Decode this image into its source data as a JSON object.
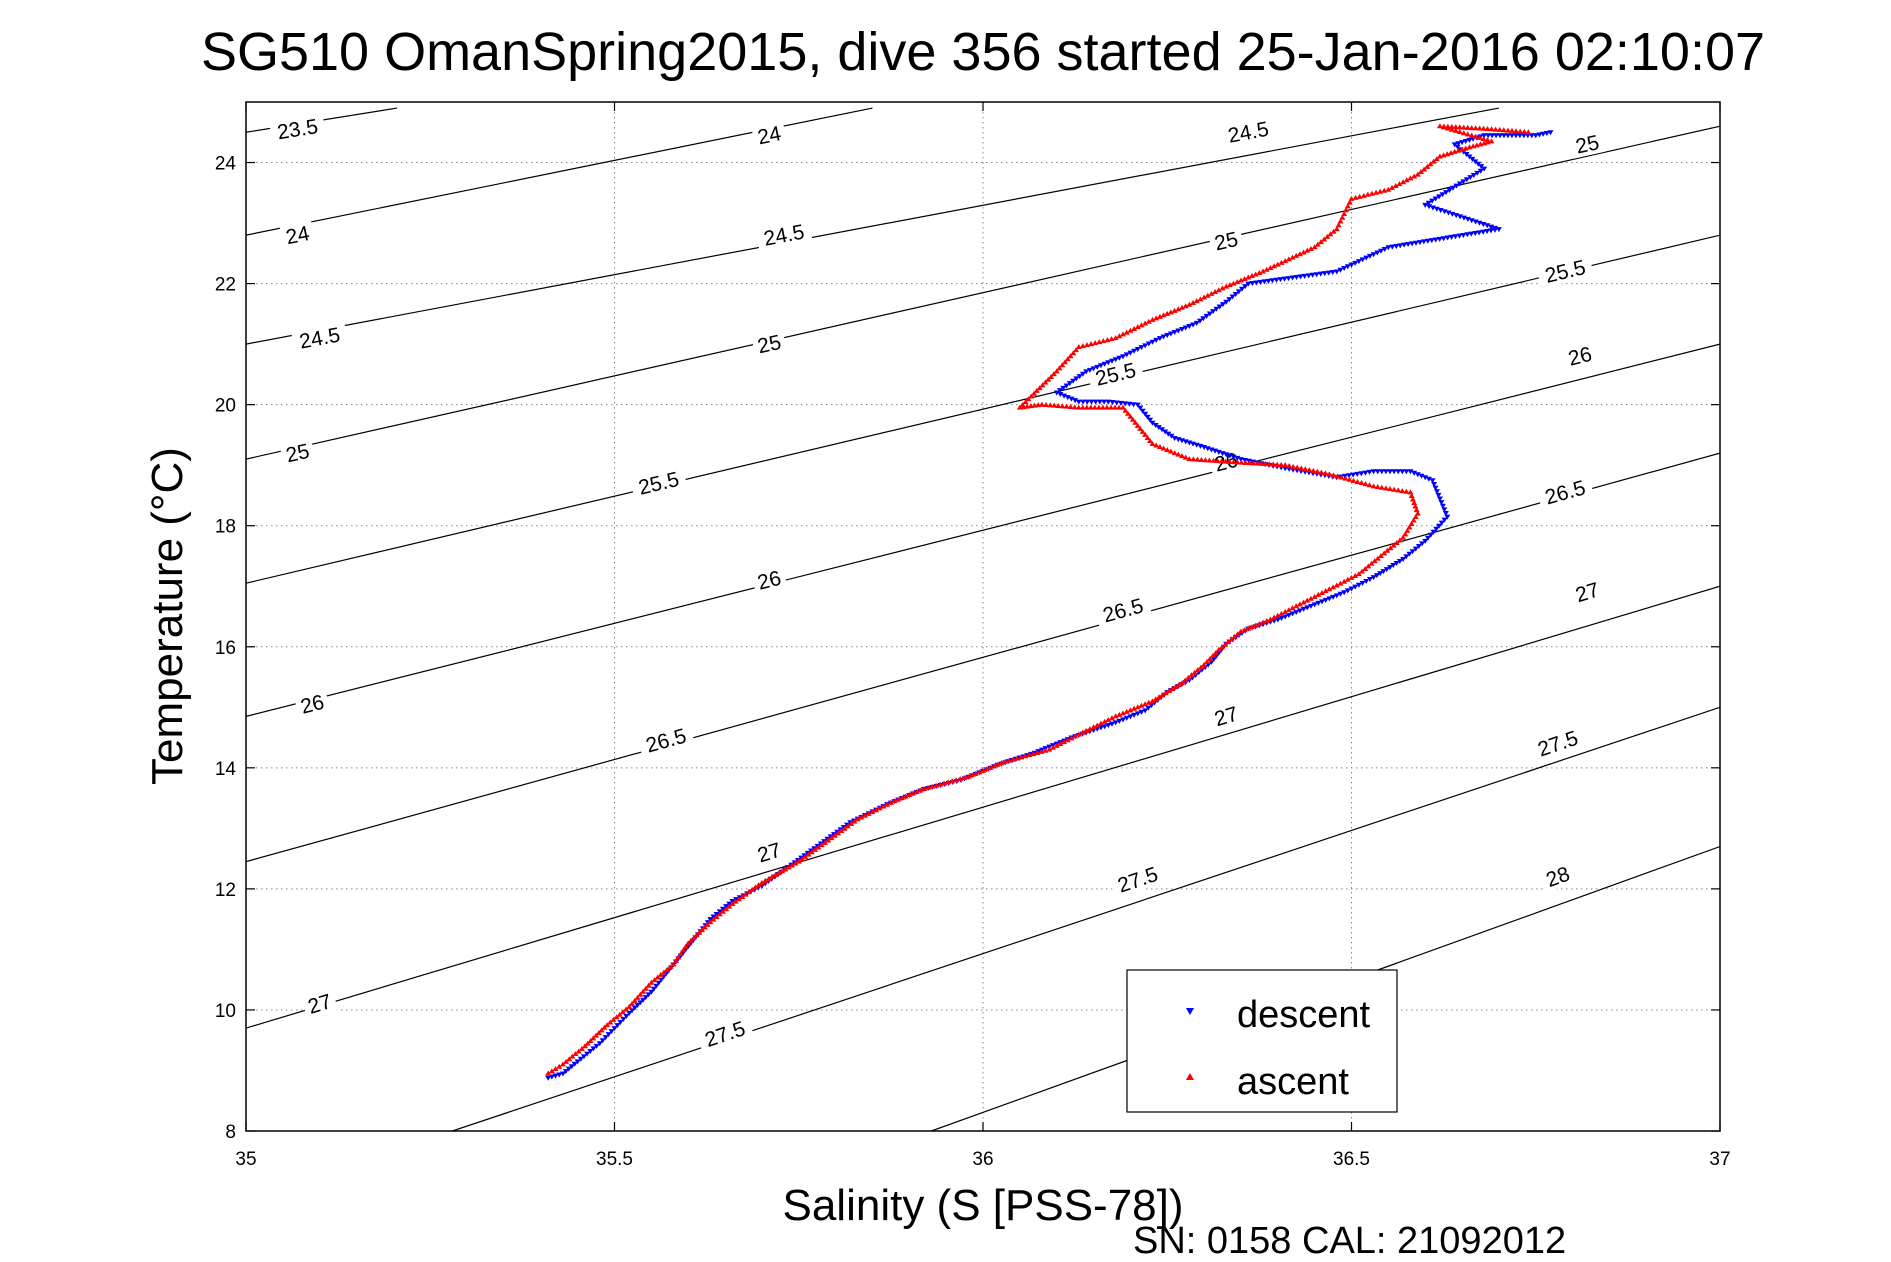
{
  "chart_data": {
    "type": "scatter",
    "title": "SG510 OmanSpring2015, dive 356 started 25-Jan-2016 02:10:07",
    "xlabel": "Salinity (S [PSS-78])",
    "ylabel": "Temperature (°C)",
    "xlim": [
      35,
      37
    ],
    "ylim": [
      8,
      25
    ],
    "x_ticks": [
      35,
      35.5,
      36,
      36.5,
      37
    ],
    "x_tick_labels": [
      "35",
      "35.5",
      "36",
      "36.5",
      "37"
    ],
    "y_ticks": [
      8,
      10,
      12,
      14,
      16,
      18,
      20,
      22,
      24
    ],
    "y_tick_labels": [
      "8",
      "10",
      "12",
      "14",
      "16",
      "18",
      "20",
      "22",
      "24"
    ],
    "grid": true,
    "legend_position": "bottom-right",
    "footer": "SN: 0158  CAL: 21092012",
    "density_contours": [
      {
        "label": "23.5",
        "left": [
          35,
          24.5
        ],
        "right": [
          35.205,
          24.9
        ]
      },
      {
        "label": "24",
        "left": [
          35,
          22.8
        ],
        "right": [
          35.85,
          24.9
        ]
      },
      {
        "label": "24.5",
        "left": [
          35,
          21.0
        ],
        "right": [
          36.7,
          24.9
        ]
      },
      {
        "label": "25",
        "left": [
          35,
          19.1
        ],
        "right": [
          37,
          24.6
        ]
      },
      {
        "label": "25.5",
        "left": [
          35,
          17.05
        ],
        "right": [
          37,
          22.8
        ]
      },
      {
        "label": "26",
        "left": [
          35,
          14.85
        ],
        "right": [
          37,
          21.0
        ]
      },
      {
        "label": "26.5",
        "left": [
          35,
          12.45
        ],
        "right": [
          37,
          19.2
        ]
      },
      {
        "label": "27",
        "left": [
          35,
          9.7
        ],
        "right": [
          37,
          17.0
        ]
      },
      {
        "label": "27.5",
        "left": [
          35.28,
          8
        ],
        "right": [
          37,
          15.0
        ]
      },
      {
        "label": "28",
        "left": [
          35.93,
          8
        ],
        "right": [
          37,
          12.7
        ]
      }
    ],
    "contour_labels": [
      {
        "text": "23.5",
        "x": 35.07,
        "y": 24.55
      },
      {
        "text": "24",
        "x": 35.71,
        "y": 24.45
      },
      {
        "text": "24",
        "x": 35.07,
        "y": 22.8
      },
      {
        "text": "24.5",
        "x": 36.36,
        "y": 24.5
      },
      {
        "text": "24.5",
        "x": 35.73,
        "y": 22.8
      },
      {
        "text": "24.5",
        "x": 35.1,
        "y": 21.1
      },
      {
        "text": "25",
        "x": 36.82,
        "y": 24.3
      },
      {
        "text": "25",
        "x": 36.33,
        "y": 22.7
      },
      {
        "text": "25",
        "x": 35.71,
        "y": 21.0
      },
      {
        "text": "25",
        "x": 35.07,
        "y": 19.2
      },
      {
        "text": "25.5",
        "x": 36.79,
        "y": 22.2
      },
      {
        "text": "25.5",
        "x": 36.18,
        "y": 20.5
      },
      {
        "text": "25.5",
        "x": 35.56,
        "y": 18.7
      },
      {
        "text": "26",
        "x": 36.81,
        "y": 20.8
      },
      {
        "text": "26",
        "x": 36.33,
        "y": 19.05
      },
      {
        "text": "26",
        "x": 35.71,
        "y": 17.1
      },
      {
        "text": "26",
        "x": 35.09,
        "y": 15.05
      },
      {
        "text": "26.5",
        "x": 36.79,
        "y": 18.55
      },
      {
        "text": "26.5",
        "x": 36.19,
        "y": 16.6
      },
      {
        "text": "26.5",
        "x": 35.57,
        "y": 14.45
      },
      {
        "text": "27",
        "x": 36.82,
        "y": 16.9
      },
      {
        "text": "27",
        "x": 36.33,
        "y": 14.85
      },
      {
        "text": "27",
        "x": 35.71,
        "y": 12.6
      },
      {
        "text": "27",
        "x": 35.1,
        "y": 10.1
      },
      {
        "text": "27.5",
        "x": 36.78,
        "y": 14.4
      },
      {
        "text": "27.5",
        "x": 36.21,
        "y": 12.15
      },
      {
        "text": "27.5",
        "x": 35.65,
        "y": 9.6
      },
      {
        "text": "28",
        "x": 36.78,
        "y": 12.2
      }
    ],
    "series": [
      {
        "name": "descent",
        "color": "#0000ff",
        "marker": "triangle-down",
        "points": [
          [
            35.41,
            8.88
          ],
          [
            35.43,
            8.95
          ],
          [
            35.45,
            9.15
          ],
          [
            35.48,
            9.45
          ],
          [
            35.5,
            9.7
          ],
          [
            35.52,
            9.95
          ],
          [
            35.55,
            10.3
          ],
          [
            35.57,
            10.6
          ],
          [
            35.59,
            10.9
          ],
          [
            35.61,
            11.2
          ],
          [
            35.63,
            11.5
          ],
          [
            35.66,
            11.8
          ],
          [
            35.7,
            12.05
          ],
          [
            35.74,
            12.4
          ],
          [
            35.78,
            12.75
          ],
          [
            35.82,
            13.1
          ],
          [
            35.87,
            13.4
          ],
          [
            35.92,
            13.65
          ],
          [
            35.97,
            13.8
          ],
          [
            36.02,
            14.05
          ],
          [
            36.07,
            14.25
          ],
          [
            36.12,
            14.5
          ],
          [
            36.18,
            14.75
          ],
          [
            36.22,
            14.95
          ],
          [
            36.25,
            15.25
          ],
          [
            36.28,
            15.45
          ],
          [
            36.31,
            15.75
          ],
          [
            36.33,
            16.05
          ],
          [
            36.36,
            16.3
          ],
          [
            36.4,
            16.45
          ],
          [
            36.44,
            16.65
          ],
          [
            36.49,
            16.9
          ],
          [
            36.53,
            17.15
          ],
          [
            36.57,
            17.45
          ],
          [
            36.6,
            17.75
          ],
          [
            36.63,
            18.15
          ],
          [
            36.62,
            18.45
          ],
          [
            36.61,
            18.75
          ],
          [
            36.58,
            18.9
          ],
          [
            36.53,
            18.9
          ],
          [
            36.48,
            18.8
          ],
          [
            36.41,
            18.95
          ],
          [
            36.35,
            19.1
          ],
          [
            36.3,
            19.3
          ],
          [
            36.26,
            19.45
          ],
          [
            36.23,
            19.7
          ],
          [
            36.21,
            20.0
          ],
          [
            36.17,
            20.05
          ],
          [
            36.13,
            20.05
          ],
          [
            36.1,
            20.2
          ],
          [
            36.14,
            20.55
          ],
          [
            36.19,
            20.8
          ],
          [
            36.24,
            21.1
          ],
          [
            36.29,
            21.35
          ],
          [
            36.33,
            21.7
          ],
          [
            36.36,
            22.0
          ],
          [
            36.42,
            22.1
          ],
          [
            36.48,
            22.2
          ],
          [
            36.55,
            22.6
          ],
          [
            36.7,
            22.9
          ],
          [
            36.6,
            23.3
          ],
          [
            36.68,
            23.9
          ],
          [
            36.64,
            24.3
          ],
          [
            36.68,
            24.45
          ],
          [
            36.75,
            24.45
          ],
          [
            36.77,
            24.5
          ]
        ]
      },
      {
        "name": "ascent",
        "color": "#ff0000",
        "marker": "triangle-up",
        "points": [
          [
            35.41,
            8.95
          ],
          [
            35.43,
            9.1
          ],
          [
            35.46,
            9.4
          ],
          [
            35.49,
            9.75
          ],
          [
            35.52,
            10.05
          ],
          [
            35.55,
            10.45
          ],
          [
            35.58,
            10.75
          ],
          [
            35.6,
            11.1
          ],
          [
            35.63,
            11.45
          ],
          [
            35.66,
            11.75
          ],
          [
            35.7,
            12.1
          ],
          [
            35.75,
            12.45
          ],
          [
            35.79,
            12.8
          ],
          [
            35.83,
            13.15
          ],
          [
            35.88,
            13.45
          ],
          [
            35.92,
            13.65
          ],
          [
            35.98,
            13.85
          ],
          [
            36.03,
            14.1
          ],
          [
            36.09,
            14.3
          ],
          [
            36.13,
            14.55
          ],
          [
            36.18,
            14.85
          ],
          [
            36.23,
            15.1
          ],
          [
            36.27,
            15.4
          ],
          [
            36.3,
            15.7
          ],
          [
            36.32,
            15.95
          ],
          [
            36.35,
            16.25
          ],
          [
            36.39,
            16.45
          ],
          [
            36.43,
            16.7
          ],
          [
            36.47,
            16.95
          ],
          [
            36.51,
            17.2
          ],
          [
            36.54,
            17.5
          ],
          [
            36.57,
            17.8
          ],
          [
            36.59,
            18.2
          ],
          [
            36.58,
            18.55
          ],
          [
            36.53,
            18.65
          ],
          [
            36.47,
            18.85
          ],
          [
            36.41,
            19.0
          ],
          [
            36.34,
            19.05
          ],
          [
            36.28,
            19.1
          ],
          [
            36.23,
            19.35
          ],
          [
            36.21,
            19.65
          ],
          [
            36.19,
            19.95
          ],
          [
            36.13,
            19.95
          ],
          [
            36.08,
            20.0
          ],
          [
            36.05,
            19.95
          ],
          [
            36.1,
            20.55
          ],
          [
            36.13,
            20.95
          ],
          [
            36.18,
            21.1
          ],
          [
            36.23,
            21.4
          ],
          [
            36.28,
            21.65
          ],
          [
            36.33,
            21.95
          ],
          [
            36.38,
            22.2
          ],
          [
            36.45,
            22.6
          ],
          [
            36.48,
            22.9
          ],
          [
            36.5,
            23.4
          ],
          [
            36.55,
            23.55
          ],
          [
            36.59,
            23.8
          ],
          [
            36.62,
            24.1
          ],
          [
            36.66,
            24.25
          ],
          [
            36.69,
            24.35
          ],
          [
            36.62,
            24.6
          ],
          [
            36.69,
            24.55
          ],
          [
            36.74,
            24.5
          ]
        ]
      }
    ]
  }
}
